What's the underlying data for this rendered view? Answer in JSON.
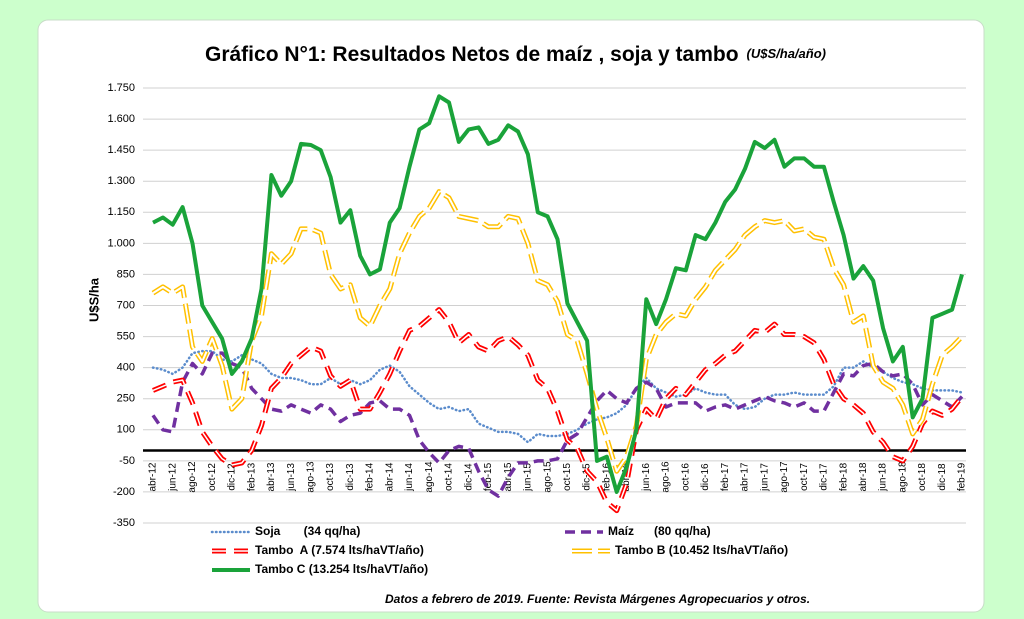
{
  "chart_data": {
    "type": "line",
    "title": "Gráfico N°1: Resultados Netos de maíz , soja y tambo",
    "subtitle": "(U$S/ha/año)",
    "ylabel": "U$S/ha",
    "source": "Datos a febrero de 2019. Fuente: Revista Márgenes Agropecuarios y otros.",
    "categories": [
      "abr-12",
      null,
      "jun-12",
      null,
      "ago-12",
      null,
      "oct-12",
      null,
      "dic-12",
      null,
      "feb-13",
      null,
      "abr-13",
      null,
      "jun-13",
      null,
      "ago-13",
      null,
      "oct-13",
      null,
      "dic-13",
      null,
      "feb-14",
      null,
      "abr-14",
      null,
      "jun-14",
      null,
      "ago-14",
      null,
      "oct-14",
      null,
      "dic-14",
      null,
      "feb-15",
      null,
      "abr-15",
      null,
      "jun-15",
      null,
      "ago-15",
      null,
      "oct-15",
      null,
      "dic-15",
      null,
      "feb-16",
      null,
      "abr-16",
      null,
      "jun-16",
      null,
      "ago-16",
      null,
      "oct-16",
      null,
      "dic-16",
      null,
      "feb-17",
      null,
      "abr-17",
      null,
      "jun-17",
      null,
      "ago-17",
      null,
      "oct-17",
      null,
      "dic-17",
      null,
      "feb-18",
      null,
      "abr-18",
      null,
      "jun-18",
      null,
      "ago-18",
      null,
      "oct-18",
      null,
      "dic-18",
      null,
      "feb-19"
    ],
    "series": [
      {
        "name": "Soja       (34 qq/ha)",
        "color": "#5b8ccc",
        "style": "dotted",
        "values": [
          400,
          390,
          370,
          400,
          470,
          480,
          480,
          440,
          430,
          460,
          440,
          420,
          370,
          350,
          350,
          340,
          320,
          320,
          350,
          320,
          340,
          320,
          340,
          390,
          410,
          380,
          310,
          270,
          230,
          200,
          210,
          190,
          200,
          130,
          110,
          90,
          90,
          80,
          40,
          80,
          70,
          70,
          80,
          100,
          130,
          150,
          160,
          180,
          220,
          300,
          350,
          300,
          280,
          260,
          270,
          300,
          280,
          270,
          270,
          220,
          200,
          210,
          250,
          270,
          270,
          280,
          270,
          270,
          270,
          310,
          400,
          400,
          430,
          400,
          380,
          350,
          330,
          320,
          300,
          290,
          290,
          290,
          280
        ]
      },
      {
        "name": "Maíz      (80 qq/ha)",
        "color": "#7030a0",
        "style": "dashed",
        "values": [
          170,
          100,
          90,
          330,
          420,
          370,
          470,
          470,
          420,
          400,
          300,
          250,
          200,
          190,
          220,
          200,
          180,
          220,
          200,
          140,
          170,
          180,
          230,
          240,
          200,
          200,
          170,
          50,
          -10,
          -60,
          0,
          20,
          10,
          -100,
          -190,
          -220,
          -130,
          -60,
          -60,
          -50,
          -50,
          -40,
          50,
          80,
          160,
          240,
          290,
          250,
          230,
          300,
          330,
          300,
          210,
          230,
          230,
          230,
          190,
          210,
          220,
          200,
          220,
          240,
          260,
          240,
          230,
          210,
          230,
          190,
          190,
          280,
          370,
          360,
          410,
          420,
          380,
          360,
          370,
          320,
          220,
          270,
          240,
          210,
          260
        ]
      },
      {
        "name": "Tambo  A (7.574 lts/haVT/año)",
        "color": "#ff0000",
        "style": "dashed-outline",
        "values": [
          290,
          310,
          330,
          340,
          230,
          90,
          20,
          -40,
          -70,
          -60,
          0,
          120,
          300,
          350,
          420,
          460,
          500,
          480,
          360,
          310,
          340,
          200,
          200,
          280,
          370,
          480,
          580,
          600,
          640,
          680,
          620,
          520,
          560,
          500,
          480,
          530,
          550,
          510,
          460,
          340,
          300,
          190,
          50,
          10,
          -100,
          -150,
          -250,
          -290,
          -160,
          100,
          200,
          150,
          250,
          300,
          270,
          330,
          390,
          420,
          460,
          480,
          530,
          580,
          570,
          610,
          560,
          560,
          550,
          520,
          440,
          320,
          250,
          220,
          180,
          90,
          40,
          -30,
          -50,
          20,
          130,
          190,
          170,
          200,
          260
        ]
      },
      {
        "name": "Tambo B (10.452 lts/haVT/año)",
        "color": "#ffc000",
        "style": "outline",
        "values": [
          760,
          790,
          760,
          790,
          500,
          430,
          540,
          410,
          200,
          250,
          530,
          650,
          950,
          900,
          950,
          1070,
          1070,
          1050,
          850,
          780,
          800,
          640,
          600,
          700,
          780,
          950,
          1050,
          1130,
          1170,
          1250,
          1220,
          1130,
          1120,
          1110,
          1080,
          1080,
          1130,
          1120,
          1000,
          820,
          800,
          720,
          560,
          530,
          370,
          200,
          60,
          -100,
          -30,
          120,
          440,
          560,
          620,
          660,
          650,
          730,
          790,
          870,
          920,
          970,
          1040,
          1080,
          1110,
          1100,
          1110,
          1060,
          1070,
          1030,
          1020,
          880,
          800,
          620,
          650,
          410,
          330,
          300,
          220,
          80,
          150,
          320,
          460,
          500,
          550
        ]
      },
      {
        "name": "Tambo C (13.254 lts/haVT/año)",
        "color": "#1aa33a",
        "style": "solid",
        "values": [
          1100,
          1125,
          1090,
          1175,
          1000,
          700,
          620,
          540,
          370,
          430,
          540,
          780,
          1330,
          1230,
          1300,
          1480,
          1475,
          1450,
          1320,
          1100,
          1160,
          940,
          850,
          875,
          1100,
          1170,
          1370,
          1550,
          1580,
          1710,
          1680,
          1490,
          1550,
          1560,
          1480,
          1500,
          1570,
          1540,
          1430,
          1150,
          1130,
          1020,
          710,
          620,
          530,
          -50,
          -30,
          -200,
          -80,
          100,
          730,
          610,
          730,
          880,
          870,
          1040,
          1020,
          1100,
          1200,
          1260,
          1360,
          1490,
          1460,
          1500,
          1370,
          1410,
          1410,
          1370,
          1370,
          1200,
          1040,
          830,
          890,
          820,
          590,
          430,
          500,
          160,
          250,
          640,
          660,
          680,
          850
        ]
      }
    ],
    "ylim": [
      -350,
      1750
    ],
    "yticks": [
      -350,
      -200,
      -50,
      100,
      250,
      400,
      550,
      700,
      850,
      {
        "value": 1000,
        "label": "1.000"
      },
      {
        "value": 1150,
        "label": "1.150"
      },
      {
        "value": 1300,
        "label": "1.300"
      },
      {
        "value": 1450,
        "label": "1.450"
      },
      {
        "value": 1600,
        "label": "1.600"
      },
      {
        "value": 1750,
        "label": "1.750"
      }
    ],
    "grid": true,
    "zero_line": true,
    "legend": "bottom"
  }
}
